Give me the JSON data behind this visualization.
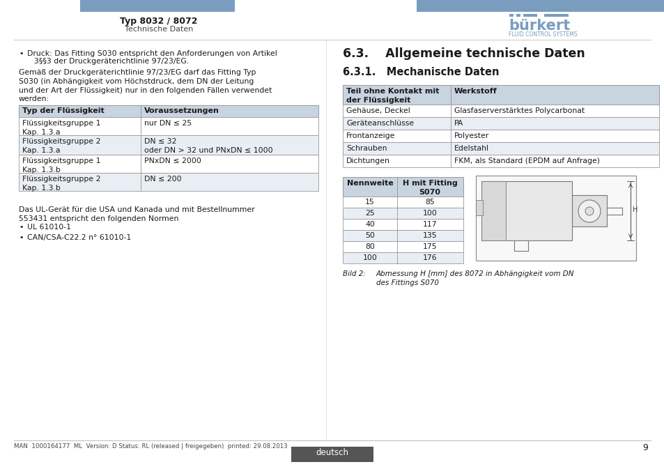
{
  "page_bg": "#ffffff",
  "header_bar_color": "#7a9dbf",
  "header_title": "Typ 8032 / 8072",
  "header_subtitle": "Technische Daten",
  "logo_text": "bürkert",
  "logo_subtext": "FLUID CONTROL SYSTEMS",
  "logo_color": "#7a9dbf",
  "section_title": "6.3.    Allgemeine technische Daten",
  "section_subtitle": "6.3.1.   Mechanische Daten",
  "left_table_headers": [
    "Typ der Flüssigkeit",
    "Voraussetzungen"
  ],
  "left_table_rows": [
    [
      "Flüssigkeitsgruppe 1\nKap. 1.3.a",
      "nur DN ≤ 25"
    ],
    [
      "Flüssigkeitsgruppe 2\nKap. 1.3.a",
      "DN ≤ 32\noder DN > 32 und PNxDN ≤ 1000"
    ],
    [
      "Flüssigkeitsgruppe 1\nKap. 1.3.b",
      "PNxDN ≤ 2000"
    ],
    [
      "Flüssigkeitsgruppe 2\nKap. 1.3.b",
      "DN ≤ 200"
    ]
  ],
  "right_table1_headers": [
    "Teil ohne Kontakt mit\nder Flüssigkeit",
    "Werkstoff"
  ],
  "right_table1_rows": [
    [
      "Gehäuse, Deckel",
      "Glasfaserverstärktes Polycarbonat"
    ],
    [
      "Geräteanschlüsse",
      "PA"
    ],
    [
      "Frontanzeige",
      "Polyester"
    ],
    [
      "Schrauben",
      "Edelstahl"
    ],
    [
      "Dichtungen",
      "FKM, als Standard (EPDM auf Anfrage)"
    ]
  ],
  "right_table2_headers": [
    "Nennweite",
    "H mit Fitting\nS070"
  ],
  "right_table2_rows": [
    [
      "15",
      "85"
    ],
    [
      "25",
      "100"
    ],
    [
      "40",
      "117"
    ],
    [
      "50",
      "135"
    ],
    [
      "80",
      "175"
    ],
    [
      "100",
      "176"
    ]
  ],
  "bild_label": "Bild 2:",
  "bild_text": "Abmessung H [mm] des 8072 in Abhängigkeit vom DN\ndes Fittings S070",
  "footer_text": "MAN  1000164177  ML  Version: D Status: RL (released | freigegeben)  printed: 29.08.2013",
  "footer_lang": "deutsch",
  "footer_page": "9",
  "table_header_bg": "#c8d4e0",
  "table_header_bg2": "#c8d4e0",
  "table_alt_bg": "#e8eef4",
  "table_white_bg": "#ffffff",
  "table_border": "#999999",
  "text_color": "#1a1a1a",
  "footer_badge_bg": "#555555"
}
